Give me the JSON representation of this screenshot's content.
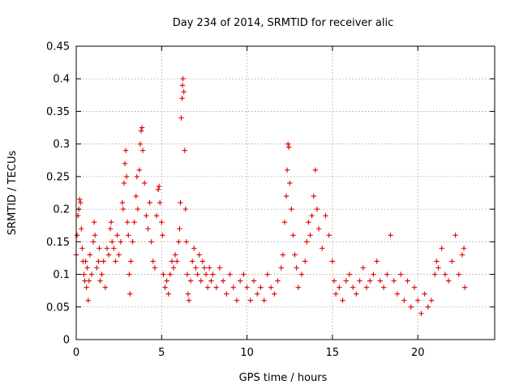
{
  "chart_data": {
    "type": "scatter",
    "title": "Day 234 of 2014, SRMTID for receiver alic",
    "xlabel": "GPS time / hours",
    "ylabel": "SRMTID / TECUs",
    "xlim": [
      0,
      24.5
    ],
    "ylim": [
      0,
      0.45
    ],
    "x_ticks": [
      0,
      5,
      10,
      15,
      20
    ],
    "x_tick_labels": [
      "0",
      "5",
      "10",
      "15",
      "20"
    ],
    "y_ticks": [
      0,
      0.05,
      0.1,
      0.15,
      0.2,
      0.25,
      0.3,
      0.35,
      0.4,
      0.45
    ],
    "y_tick_labels": [
      "0",
      "0.05",
      "0.1",
      "0.15",
      "0.2",
      "0.25",
      "0.3",
      "0.35",
      "0.4",
      "0.45"
    ],
    "grid": true,
    "marker": "+",
    "series": [
      {
        "color": "#e00000",
        "points": [
          [
            0.0,
            0.13
          ],
          [
            0.05,
            0.16
          ],
          [
            0.1,
            0.19
          ],
          [
            0.15,
            0.2
          ],
          [
            0.2,
            0.215
          ],
          [
            0.25,
            0.21
          ],
          [
            0.3,
            0.17
          ],
          [
            0.35,
            0.14
          ],
          [
            0.4,
            0.12
          ],
          [
            0.45,
            0.1
          ],
          [
            0.5,
            0.09
          ],
          [
            0.55,
            0.12
          ],
          [
            0.6,
            0.08
          ],
          [
            0.65,
            0.11
          ],
          [
            0.7,
            0.06
          ],
          [
            0.75,
            0.09
          ],
          [
            0.8,
            0.13
          ],
          [
            0.9,
            0.1
          ],
          [
            1.0,
            0.15
          ],
          [
            1.05,
            0.18
          ],
          [
            1.1,
            0.16
          ],
          [
            1.2,
            0.11
          ],
          [
            1.3,
            0.12
          ],
          [
            1.35,
            0.14
          ],
          [
            1.4,
            0.09
          ],
          [
            1.5,
            0.1
          ],
          [
            1.6,
            0.12
          ],
          [
            1.7,
            0.08
          ],
          [
            1.8,
            0.14
          ],
          [
            1.9,
            0.13
          ],
          [
            2.0,
            0.17
          ],
          [
            2.05,
            0.18
          ],
          [
            2.1,
            0.15
          ],
          [
            2.2,
            0.14
          ],
          [
            2.3,
            0.12
          ],
          [
            2.4,
            0.16
          ],
          [
            2.5,
            0.13
          ],
          [
            2.6,
            0.15
          ],
          [
            2.7,
            0.21
          ],
          [
            2.75,
            0.2
          ],
          [
            2.8,
            0.24
          ],
          [
            2.85,
            0.27
          ],
          [
            2.9,
            0.29
          ],
          [
            2.95,
            0.25
          ],
          [
            3.0,
            0.18
          ],
          [
            3.05,
            0.16
          ],
          [
            3.1,
            0.1
          ],
          [
            3.15,
            0.07
          ],
          [
            3.2,
            0.12
          ],
          [
            3.3,
            0.15
          ],
          [
            3.4,
            0.18
          ],
          [
            3.5,
            0.22
          ],
          [
            3.55,
            0.25
          ],
          [
            3.6,
            0.2
          ],
          [
            3.7,
            0.26
          ],
          [
            3.75,
            0.3
          ],
          [
            3.8,
            0.32
          ],
          [
            3.85,
            0.325
          ],
          [
            3.9,
            0.29
          ],
          [
            4.0,
            0.24
          ],
          [
            4.1,
            0.19
          ],
          [
            4.2,
            0.17
          ],
          [
            4.3,
            0.21
          ],
          [
            4.4,
            0.15
          ],
          [
            4.5,
            0.12
          ],
          [
            4.6,
            0.11
          ],
          [
            4.7,
            0.19
          ],
          [
            4.8,
            0.23
          ],
          [
            4.85,
            0.235
          ],
          [
            4.9,
            0.21
          ],
          [
            5.0,
            0.18
          ],
          [
            5.05,
            0.16
          ],
          [
            5.1,
            0.1
          ],
          [
            5.2,
            0.08
          ],
          [
            5.3,
            0.09
          ],
          [
            5.4,
            0.07
          ],
          [
            5.5,
            0.1
          ],
          [
            5.6,
            0.12
          ],
          [
            5.7,
            0.11
          ],
          [
            5.8,
            0.13
          ],
          [
            5.9,
            0.12
          ],
          [
            6.0,
            0.15
          ],
          [
            6.05,
            0.17
          ],
          [
            6.1,
            0.21
          ],
          [
            6.15,
            0.34
          ],
          [
            6.2,
            0.37
          ],
          [
            6.22,
            0.39
          ],
          [
            6.25,
            0.4
          ],
          [
            6.3,
            0.38
          ],
          [
            6.35,
            0.29
          ],
          [
            6.4,
            0.2
          ],
          [
            6.45,
            0.15
          ],
          [
            6.5,
            0.1
          ],
          [
            6.55,
            0.07
          ],
          [
            6.6,
            0.06
          ],
          [
            6.7,
            0.09
          ],
          [
            6.8,
            0.12
          ],
          [
            6.9,
            0.14
          ],
          [
            7.0,
            0.11
          ],
          [
            7.1,
            0.1
          ],
          [
            7.2,
            0.13
          ],
          [
            7.3,
            0.09
          ],
          [
            7.4,
            0.12
          ],
          [
            7.5,
            0.11
          ],
          [
            7.6,
            0.1
          ],
          [
            7.7,
            0.08
          ],
          [
            7.8,
            0.11
          ],
          [
            7.9,
            0.09
          ],
          [
            8.0,
            0.1
          ],
          [
            8.2,
            0.08
          ],
          [
            8.4,
            0.11
          ],
          [
            8.6,
            0.09
          ],
          [
            8.8,
            0.07
          ],
          [
            9.0,
            0.1
          ],
          [
            9.2,
            0.08
          ],
          [
            9.4,
            0.06
          ],
          [
            9.6,
            0.09
          ],
          [
            9.8,
            0.1
          ],
          [
            10.0,
            0.08
          ],
          [
            10.2,
            0.06
          ],
          [
            10.4,
            0.09
          ],
          [
            10.6,
            0.07
          ],
          [
            10.8,
            0.08
          ],
          [
            11.0,
            0.06
          ],
          [
            11.2,
            0.1
          ],
          [
            11.4,
            0.08
          ],
          [
            11.6,
            0.07
          ],
          [
            11.8,
            0.09
          ],
          [
            12.0,
            0.11
          ],
          [
            12.1,
            0.13
          ],
          [
            12.2,
            0.18
          ],
          [
            12.3,
            0.22
          ],
          [
            12.35,
            0.26
          ],
          [
            12.4,
            0.3
          ],
          [
            12.45,
            0.295
          ],
          [
            12.5,
            0.24
          ],
          [
            12.6,
            0.2
          ],
          [
            12.7,
            0.16
          ],
          [
            12.8,
            0.13
          ],
          [
            12.9,
            0.11
          ],
          [
            13.0,
            0.08
          ],
          [
            13.2,
            0.1
          ],
          [
            13.4,
            0.12
          ],
          [
            13.5,
            0.15
          ],
          [
            13.6,
            0.18
          ],
          [
            13.7,
            0.16
          ],
          [
            13.8,
            0.19
          ],
          [
            13.9,
            0.22
          ],
          [
            14.0,
            0.26
          ],
          [
            14.1,
            0.2
          ],
          [
            14.2,
            0.17
          ],
          [
            14.4,
            0.14
          ],
          [
            14.6,
            0.19
          ],
          [
            14.8,
            0.16
          ],
          [
            15.0,
            0.12
          ],
          [
            15.1,
            0.09
          ],
          [
            15.2,
            0.07
          ],
          [
            15.4,
            0.08
          ],
          [
            15.6,
            0.06
          ],
          [
            15.8,
            0.09
          ],
          [
            16.0,
            0.1
          ],
          [
            16.2,
            0.08
          ],
          [
            16.4,
            0.07
          ],
          [
            16.6,
            0.09
          ],
          [
            16.8,
            0.11
          ],
          [
            17.0,
            0.08
          ],
          [
            17.2,
            0.09
          ],
          [
            17.4,
            0.1
          ],
          [
            17.6,
            0.12
          ],
          [
            17.8,
            0.09
          ],
          [
            18.0,
            0.08
          ],
          [
            18.2,
            0.1
          ],
          [
            18.4,
            0.16
          ],
          [
            18.6,
            0.09
          ],
          [
            18.8,
            0.07
          ],
          [
            19.0,
            0.1
          ],
          [
            19.2,
            0.06
          ],
          [
            19.4,
            0.09
          ],
          [
            19.6,
            0.05
          ],
          [
            19.8,
            0.08
          ],
          [
            20.0,
            0.06
          ],
          [
            20.2,
            0.04
          ],
          [
            20.4,
            0.07
          ],
          [
            20.6,
            0.05
          ],
          [
            20.8,
            0.06
          ],
          [
            21.0,
            0.1
          ],
          [
            21.1,
            0.12
          ],
          [
            21.2,
            0.11
          ],
          [
            21.4,
            0.14
          ],
          [
            21.6,
            0.1
          ],
          [
            21.8,
            0.09
          ],
          [
            22.0,
            0.12
          ],
          [
            22.2,
            0.16
          ],
          [
            22.4,
            0.1
          ],
          [
            22.6,
            0.13
          ],
          [
            22.7,
            0.14
          ],
          [
            22.75,
            0.08
          ]
        ]
      }
    ]
  }
}
